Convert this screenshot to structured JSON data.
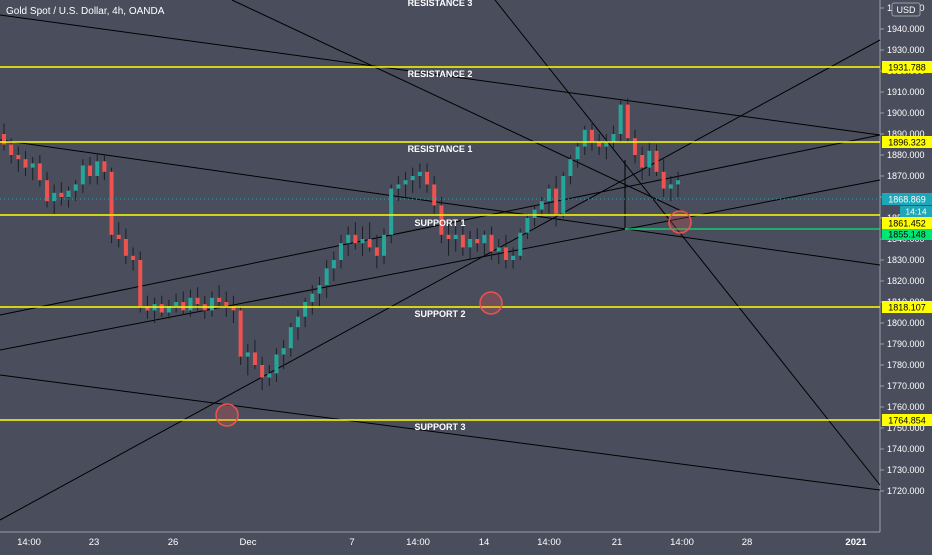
{
  "header": {
    "symbol_title": "Gold Spot / U.S. Dollar, 4h, OANDA",
    "currency_button": "USD"
  },
  "colors": {
    "background": "#4a4e5c",
    "axis_background": "#4a4e5c",
    "up_candle": "#26a69a",
    "down_candle": "#ef5350",
    "level_line": "#ffff00",
    "trend_line": "#000000",
    "current_price": "#1ea7b8",
    "green_level": "#00e676",
    "marker_circle": "#ef5350",
    "axis_text": "#ffffff"
  },
  "chart_data": {
    "type": "candlestick",
    "title": "Gold Spot / U.S. Dollar, 4h, OANDA",
    "ylim": [
      1715,
      1955
    ],
    "y_ticks": [
      1720,
      1730,
      1740,
      1750,
      1760,
      1770,
      1780,
      1790,
      1800,
      1810,
      1820,
      1830,
      1840,
      1850,
      1860,
      1870,
      1880,
      1890,
      1900,
      1910,
      1920,
      1930,
      1940,
      1950
    ],
    "x_ticks": [
      "14:00",
      "23",
      "26",
      "Dec",
      "7",
      "14:00",
      "14",
      "14:00",
      "21",
      "14:00",
      "28",
      "2021"
    ],
    "levels": [
      {
        "label": "RESISTANCE 3",
        "price": null
      },
      {
        "label": "RESISTANCE 2",
        "price": 1931.788
      },
      {
        "label": "RESISTANCE 1",
        "price": 1896.323
      },
      {
        "label": "SUPPORT 1",
        "price": 1861.452
      },
      {
        "label": "SUPPORT 2",
        "price": 1818.107
      },
      {
        "label": "SUPPORT 3",
        "price": 1764.854
      }
    ],
    "current_price": "1868.869",
    "countdown": "14:14",
    "green_level_price": "1855.148",
    "ohlc": [
      [
        1890,
        1895,
        1882,
        1885
      ],
      [
        1885,
        1888,
        1876,
        1880
      ],
      [
        1880,
        1884,
        1872,
        1878
      ],
      [
        1878,
        1882,
        1870,
        1874
      ],
      [
        1874,
        1879,
        1868,
        1876
      ],
      [
        1876,
        1880,
        1865,
        1868
      ],
      [
        1868,
        1872,
        1855,
        1858
      ],
      [
        1858,
        1866,
        1852,
        1862
      ],
      [
        1862,
        1867,
        1856,
        1860
      ],
      [
        1860,
        1865,
        1855,
        1863
      ],
      [
        1863,
        1868,
        1858,
        1866
      ],
      [
        1866,
        1878,
        1862,
        1875
      ],
      [
        1875,
        1879,
        1866,
        1870
      ],
      [
        1870,
        1881,
        1866,
        1877
      ],
      [
        1877,
        1880,
        1868,
        1872
      ],
      [
        1872,
        1874,
        1838,
        1842
      ],
      [
        1842,
        1848,
        1836,
        1840
      ],
      [
        1840,
        1845,
        1828,
        1832
      ],
      [
        1832,
        1836,
        1825,
        1830
      ],
      [
        1830,
        1834,
        1805,
        1808
      ],
      [
        1808,
        1813,
        1802,
        1806
      ],
      [
        1806,
        1812,
        1800,
        1809
      ],
      [
        1809,
        1813,
        1803,
        1805
      ],
      [
        1805,
        1811,
        1802,
        1808
      ],
      [
        1808,
        1814,
        1805,
        1810
      ],
      [
        1810,
        1815,
        1804,
        1806
      ],
      [
        1806,
        1816,
        1803,
        1812
      ],
      [
        1812,
        1817,
        1806,
        1809
      ],
      [
        1809,
        1813,
        1802,
        1806
      ],
      [
        1806,
        1815,
        1803,
        1812
      ],
      [
        1812,
        1818,
        1807,
        1810
      ],
      [
        1810,
        1815,
        1803,
        1808
      ],
      [
        1808,
        1813,
        1800,
        1806
      ],
      [
        1806,
        1808,
        1780,
        1784
      ],
      [
        1784,
        1790,
        1775,
        1786
      ],
      [
        1786,
        1792,
        1778,
        1780
      ],
      [
        1780,
        1784,
        1768,
        1774
      ],
      [
        1774,
        1780,
        1770,
        1776
      ],
      [
        1776,
        1788,
        1772,
        1785
      ],
      [
        1785,
        1792,
        1778,
        1788
      ],
      [
        1788,
        1800,
        1784,
        1798
      ],
      [
        1798,
        1806,
        1792,
        1803
      ],
      [
        1803,
        1812,
        1798,
        1810
      ],
      [
        1810,
        1818,
        1804,
        1814
      ],
      [
        1814,
        1822,
        1808,
        1818
      ],
      [
        1818,
        1830,
        1812,
        1826
      ],
      [
        1826,
        1834,
        1820,
        1830
      ],
      [
        1830,
        1842,
        1826,
        1838
      ],
      [
        1838,
        1846,
        1832,
        1842
      ],
      [
        1842,
        1848,
        1835,
        1838
      ],
      [
        1838,
        1846,
        1832,
        1840
      ],
      [
        1840,
        1848,
        1834,
        1836
      ],
      [
        1836,
        1842,
        1826,
        1832
      ],
      [
        1832,
        1845,
        1828,
        1842
      ],
      [
        1842,
        1866,
        1838,
        1864
      ],
      [
        1864,
        1870,
        1858,
        1866
      ],
      [
        1866,
        1872,
        1860,
        1868
      ],
      [
        1868,
        1874,
        1862,
        1870
      ],
      [
        1870,
        1876,
        1864,
        1872
      ],
      [
        1872,
        1876,
        1862,
        1866
      ],
      [
        1866,
        1870,
        1852,
        1856
      ],
      [
        1856,
        1860,
        1838,
        1842
      ],
      [
        1842,
        1848,
        1832,
        1840
      ],
      [
        1840,
        1846,
        1834,
        1842
      ],
      [
        1842,
        1846,
        1832,
        1836
      ],
      [
        1836,
        1844,
        1830,
        1840
      ],
      [
        1840,
        1845,
        1834,
        1838
      ],
      [
        1838,
        1844,
        1832,
        1842
      ],
      [
        1842,
        1846,
        1830,
        1834
      ],
      [
        1834,
        1840,
        1828,
        1836
      ],
      [
        1836,
        1842,
        1826,
        1830
      ],
      [
        1830,
        1836,
        1826,
        1832
      ],
      [
        1832,
        1845,
        1830,
        1843
      ],
      [
        1843,
        1852,
        1840,
        1850
      ],
      [
        1850,
        1856,
        1846,
        1854
      ],
      [
        1854,
        1860,
        1850,
        1858
      ],
      [
        1858,
        1866,
        1852,
        1864
      ],
      [
        1864,
        1870,
        1846,
        1852
      ],
      [
        1852,
        1872,
        1850,
        1870
      ],
      [
        1870,
        1880,
        1866,
        1878
      ],
      [
        1878,
        1886,
        1874,
        1884
      ],
      [
        1884,
        1894,
        1880,
        1892
      ],
      [
        1892,
        1896,
        1882,
        1886
      ],
      [
        1886,
        1890,
        1880,
        1884
      ],
      [
        1884,
        1890,
        1878,
        1886
      ],
      [
        1886,
        1894,
        1882,
        1890
      ],
      [
        1890,
        1906,
        1886,
        1904
      ],
      [
        1904,
        1907,
        1886,
        1888
      ],
      [
        1888,
        1892,
        1876,
        1880
      ],
      [
        1880,
        1884,
        1868,
        1874
      ],
      [
        1874,
        1886,
        1870,
        1882
      ],
      [
        1882,
        1885,
        1870,
        1872
      ],
      [
        1872,
        1878,
        1860,
        1864
      ],
      [
        1864,
        1870,
        1858,
        1866
      ],
      [
        1866,
        1872,
        1860,
        1868
      ]
    ]
  }
}
